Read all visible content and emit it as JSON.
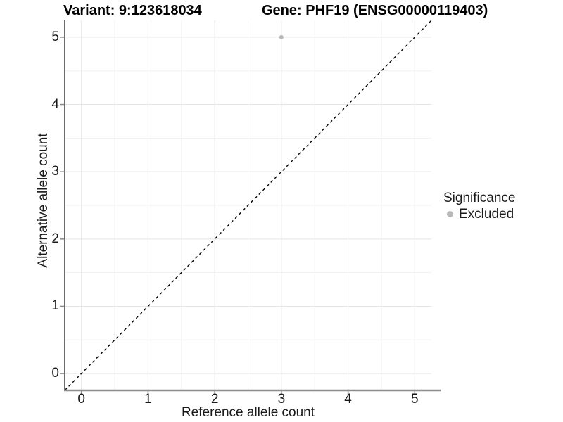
{
  "titles": {
    "variant": "Variant: 9:123618034",
    "gene": "Gene: PHF19 (ENSG00000119403)"
  },
  "axes": {
    "x_label": "Reference allele count",
    "y_label": "Alternative allele count"
  },
  "legend": {
    "title": "Significance",
    "items": [
      {
        "label": "Excluded",
        "color": "#b9b9b9"
      }
    ]
  },
  "chart_data": {
    "type": "scatter",
    "title": "Variant: 9:123618034   Gene: PHF19 (ENSG00000119403)",
    "xlabel": "Reference allele count",
    "ylabel": "Alternative allele count",
    "xlim": [
      -0.25,
      5.25
    ],
    "ylim": [
      -0.25,
      5.25
    ],
    "x_ticks": [
      0,
      1,
      2,
      3,
      4,
      5
    ],
    "y_ticks": [
      0,
      1,
      2,
      3,
      4,
      5
    ],
    "x_minor_ticks": [
      0.5,
      1.5,
      2.5,
      3.5,
      4.5
    ],
    "y_minor_ticks": [
      0.5,
      1.5,
      2.5,
      3.5,
      4.5
    ],
    "grid": true,
    "legend_position": "right",
    "series": [
      {
        "name": "Excluded",
        "color": "#b9b9b9",
        "points": [
          {
            "x": 3,
            "y": 5
          }
        ]
      }
    ],
    "reference_line": {
      "kind": "identity",
      "style": "dashed",
      "from": [
        -0.25,
        -0.25
      ],
      "to": [
        5.25,
        5.25
      ],
      "color": "#000000"
    },
    "colors": {
      "background": "#ffffff",
      "grid_major": "#e5e5e5",
      "grid_minor": "#f1f1f1",
      "axis_line_bottom": "#8c8c8c",
      "axis_line_left": "#3c3c3c",
      "tick_mark": "#8c8c8c",
      "point": "#b9b9b9"
    }
  }
}
